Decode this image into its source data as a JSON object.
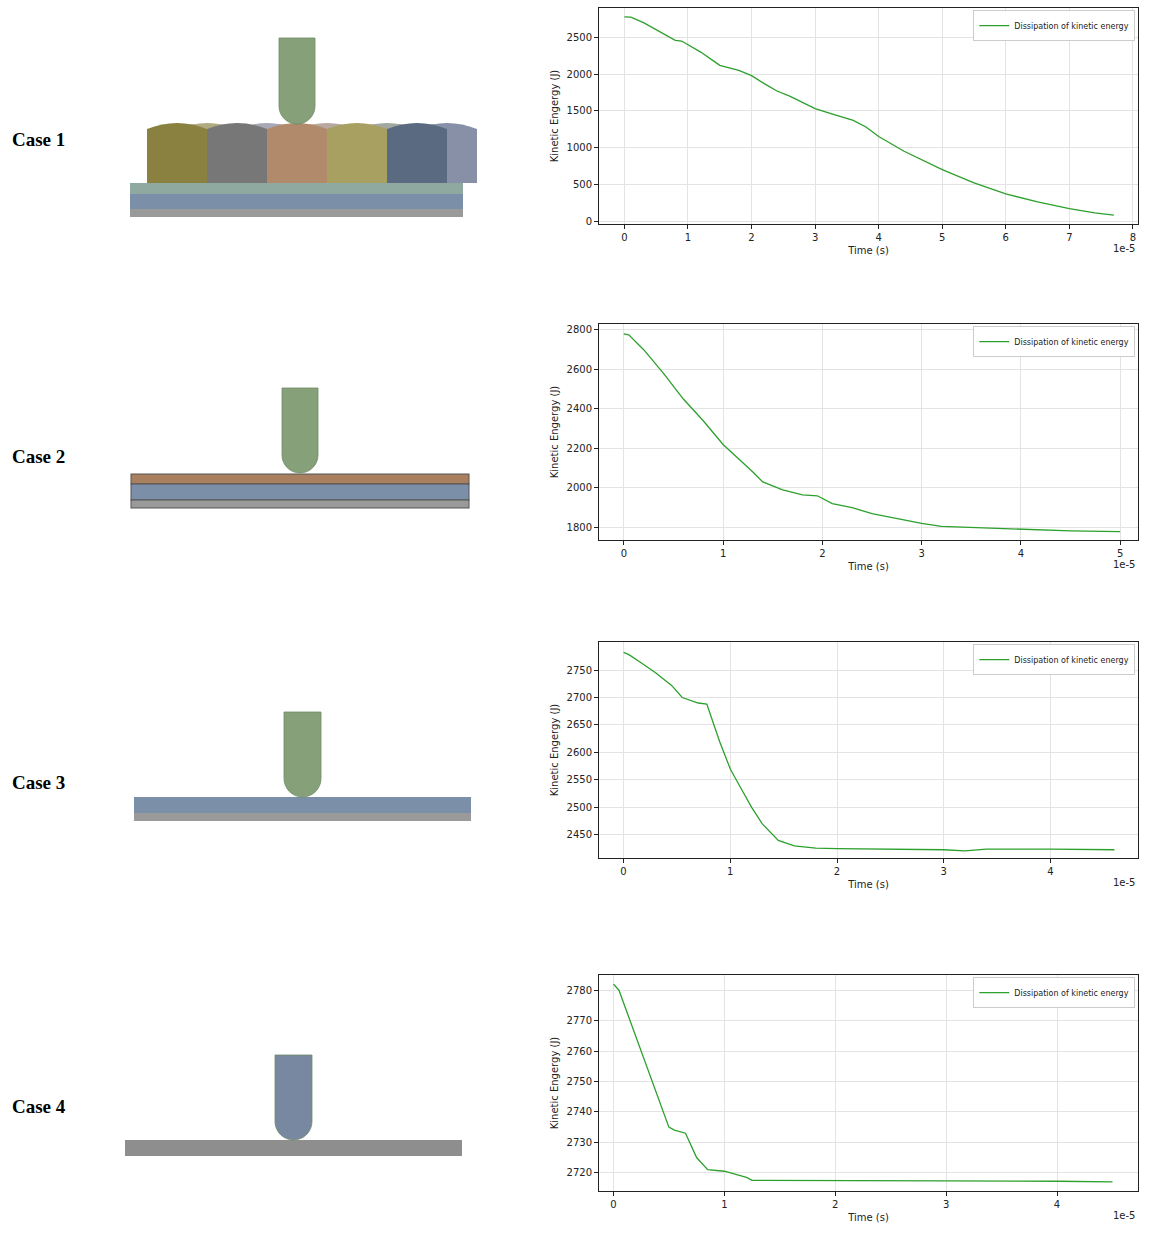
{
  "case_labels": [
    "Case 1",
    "Case 2",
    "Case 3",
    "Case 4"
  ],
  "chart_data": [
    {
      "type": "line",
      "x_label": "Time (s)",
      "y_label": "Kinetic Engergy (J)",
      "annotations": [
        "1e-5"
      ],
      "x": [
        0,
        1e-06,
        3e-06,
        5e-06,
        7e-06,
        8e-06,
        9e-06,
        1e-05,
        1.2e-05,
        1.4e-05,
        1.5e-05,
        1.8e-05,
        2e-05,
        2.2e-05,
        2.4e-05,
        2.6e-05,
        2.8e-05,
        3e-05,
        3.3e-05,
        3.6e-05,
        3.8e-05,
        4e-05,
        4.4e-05,
        4.7e-05,
        5e-05,
        5.5e-05,
        6e-05,
        6.5e-05,
        7e-05,
        7.4e-05,
        7.7e-05
      ],
      "series": [
        {
          "name": "Dissipation of kinetic energy",
          "color": "#2ca02c",
          "values": [
            2780,
            2775,
            2700,
            2600,
            2500,
            2460,
            2450,
            2400,
            2300,
            2180,
            2120,
            2050,
            1980,
            1870,
            1770,
            1700,
            1610,
            1530,
            1450,
            1370,
            1280,
            1150,
            950,
            820,
            700,
            520,
            370,
            260,
            170,
            110,
            80
          ]
        }
      ],
      "xlim": [
        -4e-06,
        8.08e-05
      ],
      "xticks": [
        0,
        {
          "value": 1e-05,
          "label": "1"
        },
        {
          "value": 2e-05,
          "label": "2"
        },
        {
          "value": 3e-05,
          "label": "3"
        },
        {
          "value": 4e-05,
          "label": "4"
        },
        {
          "value": 5e-05,
          "label": "5"
        },
        {
          "value": 6e-05,
          "label": "6"
        },
        {
          "value": 7e-05,
          "label": "7"
        },
        {
          "value": 8e-05,
          "label": "8"
        }
      ],
      "ylim": [
        -40,
        2900
      ],
      "yticks": [
        0,
        500,
        1000,
        1500,
        2000,
        2500
      ],
      "grid": true,
      "legend": "upper right"
    },
    {
      "type": "line",
      "x_label": "Time (s)",
      "y_label": "Kinetic Engergy (J)",
      "annotations": [
        "1e-5"
      ],
      "x": [
        0,
        5e-07,
        2e-06,
        4e-06,
        6e-06,
        8e-06,
        1e-05,
        1.2e-05,
        1.3e-05,
        1.4e-05,
        1.6e-05,
        1.8e-05,
        1.95e-05,
        2.1e-05,
        2.3e-05,
        2.5e-05,
        2.8e-05,
        3e-05,
        3.2e-05,
        3.5e-05,
        4e-05,
        4.5e-05,
        5e-05
      ],
      "series": [
        {
          "name": "Dissipation of kinetic energy",
          "color": "#2ca02c",
          "values": [
            2780,
            2775,
            2700,
            2580,
            2450,
            2340,
            2220,
            2130,
            2080,
            2030,
            1990,
            1965,
            1960,
            1920,
            1900,
            1870,
            1840,
            1820,
            1805,
            1800,
            1790,
            1782,
            1778
          ]
        }
      ],
      "xlim": [
        -2.5e-06,
        5.18e-05
      ],
      "xticks": [
        0,
        {
          "value": 1e-05,
          "label": "1"
        },
        {
          "value": 2e-05,
          "label": "2"
        },
        {
          "value": 3e-05,
          "label": "3"
        },
        {
          "value": 4e-05,
          "label": "4"
        },
        {
          "value": 5e-05,
          "label": "5"
        }
      ],
      "ylim": [
        1736,
        2830
      ],
      "yticks": [
        1800,
        2000,
        2200,
        2400,
        2600,
        2800
      ],
      "grid": true,
      "legend": "upper right"
    },
    {
      "type": "line",
      "x_label": "Time (s)",
      "y_label": "Kinetic Engergy (J)",
      "annotations": [
        "1e-5"
      ],
      "x": [
        0,
        5e-07,
        1.5e-06,
        3e-06,
        4.5e-06,
        5.5e-06,
        7e-06,
        7.8e-06,
        9e-06,
        1e-05,
        1.1e-05,
        1.2e-05,
        1.3e-05,
        1.45e-05,
        1.6e-05,
        1.8e-05,
        2e-05,
        2.5e-05,
        3e-05,
        3.2e-05,
        3.4e-05,
        4e-05,
        4.6e-05
      ],
      "series": [
        {
          "name": "Dissipation of kinetic energy",
          "color": "#2ca02c",
          "values": [
            2782,
            2778,
            2765,
            2745,
            2722,
            2700,
            2690,
            2688,
            2620,
            2570,
            2535,
            2500,
            2470,
            2440,
            2430,
            2426,
            2425,
            2424,
            2423,
            2421,
            2424,
            2424,
            2423
          ]
        }
      ],
      "xlim": [
        -2.3e-06,
        4.82e-05
      ],
      "xticks": [
        0,
        {
          "value": 1e-05,
          "label": "1"
        },
        {
          "value": 2e-05,
          "label": "2"
        },
        {
          "value": 3e-05,
          "label": "3"
        },
        {
          "value": 4e-05,
          "label": "4"
        }
      ],
      "ylim": [
        2408,
        2801
      ],
      "yticks": [
        2450,
        2500,
        2550,
        2600,
        2650,
        2700,
        2750
      ],
      "grid": true,
      "legend": "upper right"
    },
    {
      "type": "line",
      "x_label": "Time (s)",
      "y_label": "Kinetic Engergy (J)",
      "annotations": [
        "1e-5"
      ],
      "x": [
        0,
        5e-07,
        1e-06,
        2e-06,
        3e-06,
        4e-06,
        5e-06,
        5.5e-06,
        6.5e-06,
        7.5e-06,
        8.5e-06,
        1e-05,
        1.1e-05,
        1.2e-05,
        1.25e-05,
        1.4e-05,
        2e-05,
        3e-05,
        4e-05,
        4.5e-05
      ],
      "series": [
        {
          "name": "Dissipation of kinetic energy",
          "color": "#2ca02c",
          "values": [
            2782,
            2780,
            2775,
            2765,
            2755,
            2745,
            2735,
            2734,
            2733,
            2725,
            2721,
            2720.5,
            2719.5,
            2718.5,
            2717.5,
            2717.5,
            2717.4,
            2717.3,
            2717.2,
            2717
          ]
        }
      ],
      "xlim": [
        -1.3e-06,
        4.73e-05
      ],
      "xticks": [
        0,
        {
          "value": 1e-05,
          "label": "1"
        },
        {
          "value": 2e-05,
          "label": "2"
        },
        {
          "value": 3e-05,
          "label": "3"
        },
        {
          "value": 4e-05,
          "label": "4"
        }
      ],
      "ylim": [
        2714,
        2785
      ],
      "yticks": [
        2720,
        2730,
        2740,
        2750,
        2760,
        2770,
        2780
      ],
      "grid": true,
      "legend": "upper right"
    }
  ]
}
